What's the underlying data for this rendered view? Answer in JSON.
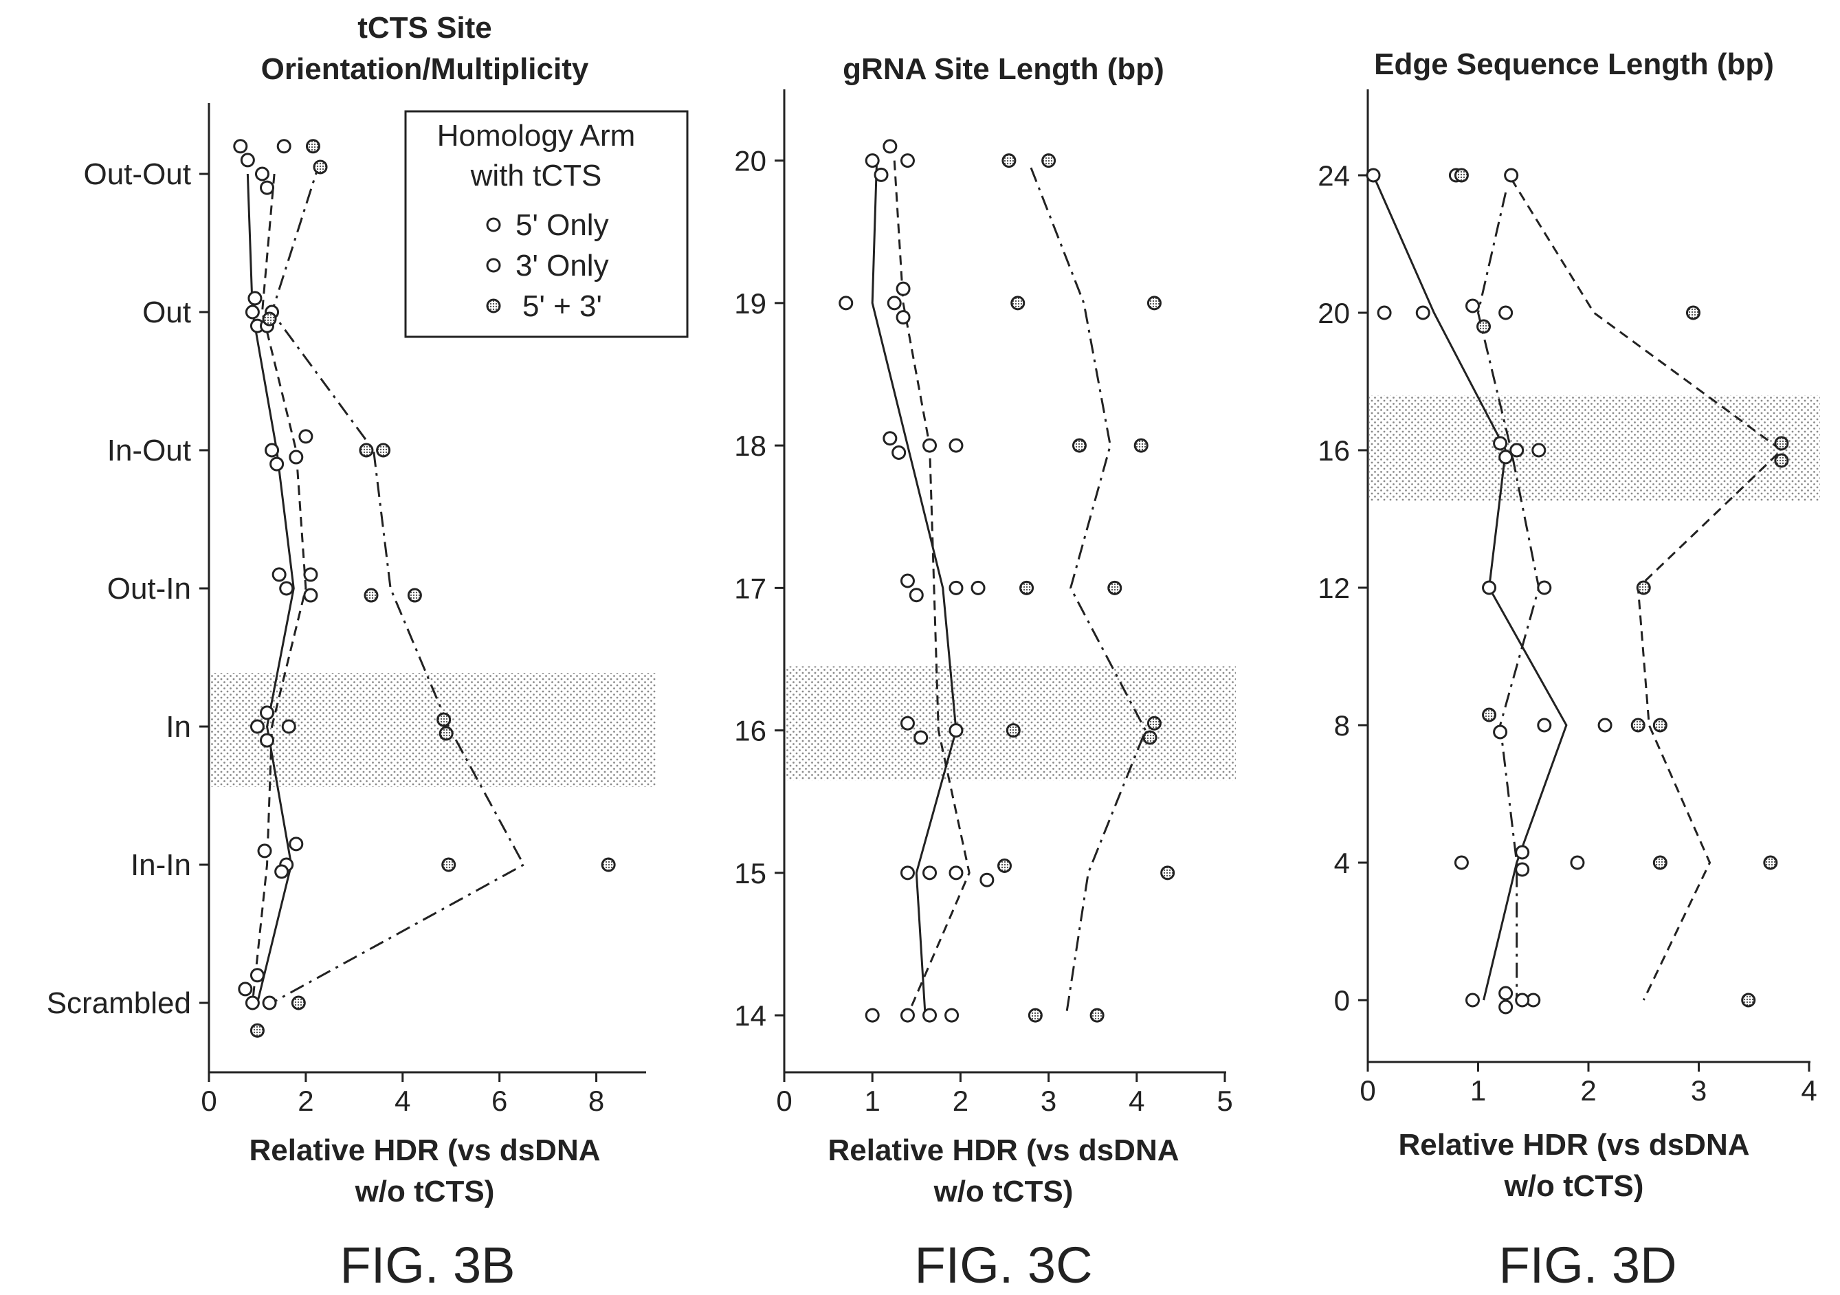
{
  "legend": {
    "title_line1": "Homology Arm",
    "title_line2": "with tCTS",
    "entries": [
      "5' Only",
      "3' Only",
      "5' + 3'"
    ]
  },
  "colors": {
    "ink": "#222222",
    "open_marker": "#ffffff",
    "filled_marker": "#8a8a8a",
    "highlight": "#9a9a9a"
  },
  "chart_data": [
    {
      "type": "scatter",
      "figure_label": "FIG. 3B",
      "title_lines": [
        "tCTS Site",
        "Orientation/Multiplicity"
      ],
      "xlabel_lines": [
        "Relative HDR (vs dsDNA",
        "w/o tCTS)"
      ],
      "ylabel": "",
      "xlim": [
        0,
        9
      ],
      "xticks": [
        0,
        2,
        4,
        6,
        8
      ],
      "categories": [
        "Out-Out",
        "Out",
        "In-Out",
        "Out-In",
        "In",
        "In-In",
        "Scrambled"
      ],
      "ylim": [
        -0.25,
        6.5
      ],
      "highlight_category": "In",
      "series": [
        {
          "name": "5' Only",
          "line": "solid",
          "points": [
            [
              0.8,
              6.1
            ],
            [
              1.1,
              6.0
            ],
            [
              0.9,
              5.0
            ],
            [
              1.0,
              4.9
            ],
            [
              1.3,
              4.0
            ],
            [
              1.4,
              3.9
            ],
            [
              1.45,
              3.1
            ],
            [
              1.6,
              3.0
            ],
            [
              1.2,
              2.1
            ],
            [
              1.0,
              2.0
            ],
            [
              1.2,
              1.9
            ],
            [
              1.15,
              1.1
            ],
            [
              1.6,
              1.0
            ],
            [
              1.0,
              0.2
            ],
            [
              0.75,
              0.1
            ],
            [
              0.9,
              0.0
            ]
          ],
          "line_x": [
            0.8,
            0.9,
            1.4,
            1.75,
            1.2,
            1.7,
            1.0
          ],
          "line_y": [
            6.0,
            5.0,
            4.0,
            3.0,
            2.0,
            1.0,
            0.0
          ]
        },
        {
          "name": "3' Only",
          "line": "dashed",
          "points": [
            [
              0.65,
              6.2
            ],
            [
              1.55,
              6.2
            ],
            [
              1.2,
              5.9
            ],
            [
              0.95,
              5.1
            ],
            [
              1.3,
              5.0
            ],
            [
              1.2,
              4.9
            ],
            [
              2.0,
              4.1
            ],
            [
              1.8,
              3.95
            ],
            [
              2.1,
              3.1
            ],
            [
              2.1,
              2.95
            ],
            [
              1.65,
              2.0
            ],
            [
              1.8,
              1.15
            ],
            [
              1.5,
              0.95
            ],
            [
              1.25,
              0.0
            ]
          ],
          "line_x": [
            1.35,
            1.1,
            1.8,
            2.0,
            1.3,
            1.2,
            0.9
          ],
          "line_y": [
            6.0,
            5.0,
            4.0,
            3.0,
            2.0,
            1.0,
            0.0
          ]
        },
        {
          "name": "5' + 3'",
          "line": "dash-dot",
          "points": [
            [
              2.15,
              6.2
            ],
            [
              2.3,
              6.05
            ],
            [
              1.25,
              4.95
            ],
            [
              3.25,
              4.0
            ],
            [
              3.6,
              4.0
            ],
            [
              3.35,
              2.95
            ],
            [
              4.25,
              2.95
            ],
            [
              4.85,
              2.05
            ],
            [
              4.9,
              1.95
            ],
            [
              4.95,
              1.0
            ],
            [
              8.25,
              1.0
            ],
            [
              1.85,
              0.0
            ],
            [
              1.0,
              -0.2
            ]
          ],
          "line_x": [
            2.3,
            1.3,
            3.4,
            3.75,
            4.95,
            6.5,
            1.3
          ],
          "line_y": [
            6.1,
            5.0,
            4.0,
            3.0,
            2.0,
            1.0,
            0.0
          ]
        }
      ]
    },
    {
      "type": "scatter",
      "figure_label": "FIG. 3C",
      "title_lines": [
        "gRNA Site Length (bp)"
      ],
      "xlabel_lines": [
        "Relative HDR (vs dsDNA",
        "w/o tCTS)"
      ],
      "ylabel": "",
      "xlim": [
        0,
        5
      ],
      "xticks": [
        0,
        1,
        2,
        3,
        4,
        5
      ],
      "ylim": [
        13.6,
        20.5
      ],
      "yticks": [
        14,
        15,
        16,
        17,
        18,
        19,
        20
      ],
      "highlight_y": [
        15.65,
        16.45
      ],
      "series": [
        {
          "name": "5' Only",
          "line": "solid",
          "points": [
            [
              1.2,
              20.1
            ],
            [
              1.0,
              20.0
            ],
            [
              1.1,
              19.9
            ],
            [
              0.7,
              19.0
            ],
            [
              1.25,
              19.0
            ],
            [
              1.2,
              18.05
            ],
            [
              1.3,
              17.95
            ],
            [
              1.4,
              17.05
            ],
            [
              1.5,
              16.95
            ],
            [
              1.4,
              16.05
            ],
            [
              1.55,
              15.95
            ],
            [
              1.4,
              15.0
            ],
            [
              1.0,
              14.0
            ],
            [
              1.65,
              14.0
            ]
          ],
          "line_x": [
            1.05,
            1.0,
            1.4,
            1.8,
            1.95,
            1.5,
            1.6
          ],
          "line_y": [
            20.0,
            19.0,
            18.0,
            17.0,
            16.0,
            15.0,
            14.0
          ]
        },
        {
          "name": "3' Only",
          "line": "dashed",
          "points": [
            [
              1.4,
              20.0
            ],
            [
              1.35,
              19.1
            ],
            [
              1.35,
              18.9
            ],
            [
              1.65,
              18.0
            ],
            [
              1.95,
              18.0
            ],
            [
              1.95,
              17.0
            ],
            [
              2.2,
              17.0
            ],
            [
              1.95,
              16.0
            ],
            [
              1.65,
              15.0
            ],
            [
              1.95,
              15.0
            ],
            [
              2.3,
              14.95
            ],
            [
              1.4,
              14.0
            ],
            [
              1.9,
              14.0
            ]
          ],
          "line_x": [
            1.25,
            1.35,
            1.65,
            1.7,
            1.75,
            2.1,
            1.4
          ],
          "line_y": [
            20.0,
            19.0,
            18.0,
            17.0,
            16.0,
            15.0,
            14.0
          ]
        },
        {
          "name": "5' + 3'",
          "line": "dash-dot",
          "points": [
            [
              2.55,
              20.0
            ],
            [
              3.0,
              20.0
            ],
            [
              2.65,
              19.0
            ],
            [
              4.2,
              19.0
            ],
            [
              3.35,
              18.0
            ],
            [
              4.05,
              18.0
            ],
            [
              2.75,
              17.0
            ],
            [
              3.75,
              17.0
            ],
            [
              2.6,
              16.0
            ],
            [
              4.2,
              16.05
            ],
            [
              4.15,
              15.95
            ],
            [
              2.5,
              15.05
            ],
            [
              4.35,
              15.0
            ],
            [
              2.85,
              14.0
            ],
            [
              3.55,
              14.0
            ]
          ],
          "line_x": [
            2.8,
            3.4,
            3.7,
            3.25,
            4.1,
            3.45,
            3.2
          ],
          "line_y": [
            19.95,
            19.0,
            18.0,
            17.0,
            16.0,
            15.0,
            14.0
          ]
        }
      ]
    },
    {
      "type": "scatter",
      "figure_label": "FIG. 3D",
      "title_lines": [
        "Edge Sequence Length (bp)"
      ],
      "xlabel_lines": [
        "Relative HDR (vs dsDNA",
        "w/o tCTS)"
      ],
      "ylabel": "",
      "xlim": [
        0,
        4
      ],
      "xticks": [
        0,
        1,
        2,
        3,
        4
      ],
      "ylim": [
        -1.8,
        26.5
      ],
      "yticks": [
        0,
        4,
        8,
        12,
        16,
        20,
        24
      ],
      "highlight_y": [
        14.5,
        17.6
      ],
      "series": [
        {
          "name": "5' Only",
          "line": "solid",
          "points": [
            [
              0.05,
              24.0
            ],
            [
              0.15,
              20.0
            ],
            [
              0.5,
              20.0
            ],
            [
              1.2,
              16.2
            ],
            [
              1.25,
              15.8
            ],
            [
              1.1,
              12.0
            ],
            [
              1.2,
              7.8
            ],
            [
              1.4,
              4.3
            ],
            [
              1.4,
              3.8
            ],
            [
              0.95,
              0.0
            ],
            [
              1.25,
              -0.2
            ],
            [
              1.5,
              0.0
            ]
          ],
          "line_x": [
            0.05,
            0.6,
            1.25,
            1.1,
            1.8,
            1.35,
            1.05
          ],
          "line_y": [
            24.0,
            20.0,
            16.0,
            12.0,
            8.0,
            4.0,
            0.0
          ]
        },
        {
          "name": "3' Only",
          "line": "dashed",
          "points": [
            [
              0.8,
              24.0
            ],
            [
              1.3,
              24.0
            ],
            [
              0.95,
              20.2
            ],
            [
              1.25,
              20.0
            ],
            [
              1.35,
              16.0
            ],
            [
              1.55,
              16.0
            ],
            [
              1.6,
              12.0
            ],
            [
              1.6,
              8.0
            ],
            [
              2.15,
              8.0
            ],
            [
              0.85,
              4.0
            ],
            [
              1.9,
              4.0
            ],
            [
              1.25,
              0.2
            ],
            [
              1.4,
              0.0
            ]
          ],
          "line_x": [
            1.3,
            2.05,
            3.75,
            2.45,
            2.55,
            3.1,
            2.5
          ],
          "line_y": [
            23.9,
            20.0,
            16.0,
            12.0,
            8.0,
            4.0,
            0.0
          ]
        },
        {
          "name": "5' + 3'",
          "line": "dash-dot",
          "points": [
            [
              0.85,
              24.0
            ],
            [
              1.05,
              19.6
            ],
            [
              2.95,
              20.0
            ],
            [
              3.75,
              16.2
            ],
            [
              3.75,
              15.7
            ],
            [
              2.5,
              12.0
            ],
            [
              1.1,
              8.3
            ],
            [
              2.45,
              8.0
            ],
            [
              2.65,
              8.0
            ],
            [
              2.65,
              4.0
            ],
            [
              3.65,
              4.0
            ],
            [
              3.45,
              0.0
            ]
          ],
          "line_x": [
            1.25,
            1.0,
            1.3,
            1.55,
            1.2,
            1.35,
            1.35
          ],
          "line_y": [
            23.5,
            20.0,
            16.0,
            12.0,
            8.0,
            4.0,
            0.0
          ]
        }
      ]
    }
  ]
}
